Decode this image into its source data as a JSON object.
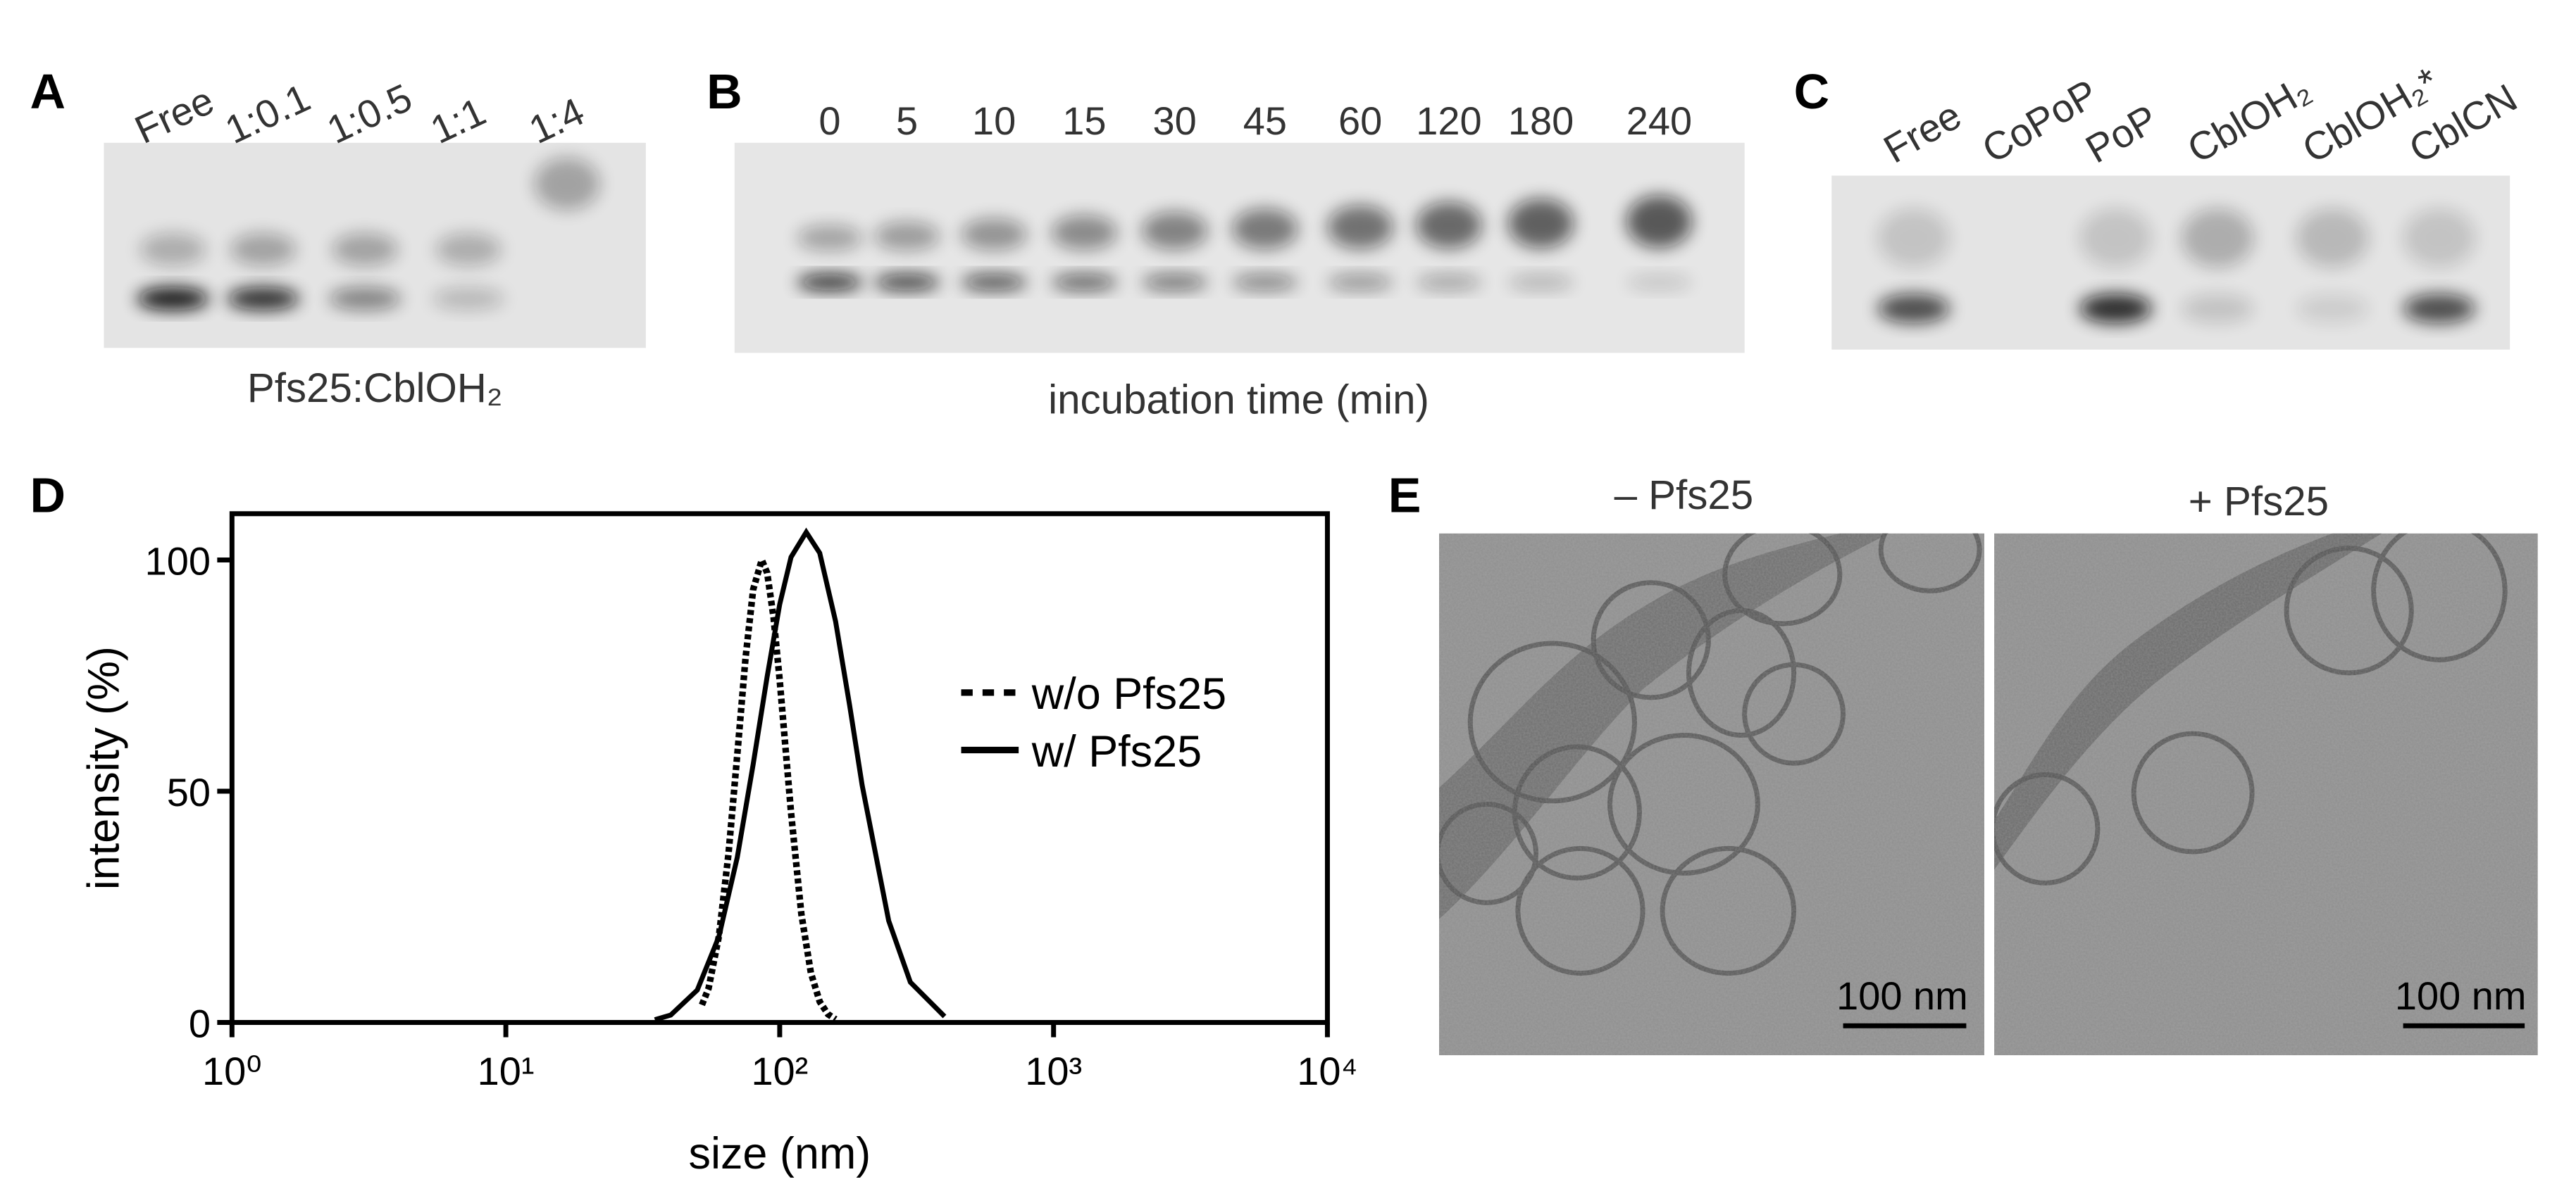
{
  "panel_a": {
    "label": "A",
    "lanes": [
      "Free",
      "1:0.1",
      "1:0.5",
      "1:1",
      "1:4"
    ],
    "caption": "Pfs25:CblOH₂"
  },
  "panel_b": {
    "label": "B",
    "lanes": [
      0,
      5,
      10,
      15,
      30,
      45,
      60,
      120,
      180,
      240
    ],
    "caption": "incubation time (min)"
  },
  "panel_c": {
    "label": "C",
    "lanes": [
      "Free",
      "CoPoP",
      "PoP",
      "CblOH₂",
      "CblOH₂*",
      "CblCN"
    ]
  },
  "chart_data": {
    "type": "line",
    "label": "D",
    "x_label": "size (nm)",
    "y_label": "intensity (%)",
    "xscale": "log",
    "xlim": [
      1,
      10000
    ],
    "xticks": [
      {
        "value": 1,
        "label": "10⁰"
      },
      {
        "value": 10,
        "label": "10¹"
      },
      {
        "value": 100,
        "label": "10²"
      },
      {
        "value": 1000,
        "label": "10³"
      },
      {
        "value": 10000,
        "label": "10⁴"
      }
    ],
    "ylim": [
      0,
      110
    ],
    "yticks": [
      0,
      50,
      100
    ],
    "legend": "center right",
    "series": [
      {
        "name": "w/o Pfs25",
        "color": "#000000",
        "style": "dotted",
        "x": [
          52,
          55,
          60,
          65,
          70,
          75,
          80,
          86,
          90,
          95,
          100,
          110,
          120,
          130,
          140,
          150,
          160
        ],
        "values": [
          3.8,
          7.4,
          18.7,
          36.4,
          57.9,
          78.7,
          93.6,
          100,
          97.2,
          87.5,
          74,
          45.4,
          23.4,
          10.7,
          4.5,
          1.8,
          0.7
        ]
      },
      {
        "name": "w/ Pfs25",
        "color": "#000000",
        "style": "solid",
        "x": [
          35,
          40,
          50,
          60,
          70,
          80,
          90,
          100,
          110,
          125,
          140,
          160,
          180,
          200,
          250,
          300,
          400
        ],
        "values": [
          0.6,
          1.6,
          7,
          18.6,
          35.7,
          55.8,
          74.8,
          90.4,
          100.6,
          106,
          101.5,
          86.7,
          68.6,
          51.3,
          22,
          8.7,
          1.3
        ]
      }
    ]
  },
  "panel_e": {
    "label": "E",
    "images": [
      {
        "title": "– Pfs25",
        "scale_bar": "100 nm"
      },
      {
        "title": "+ Pfs25",
        "scale_bar": "100 nm"
      }
    ]
  }
}
